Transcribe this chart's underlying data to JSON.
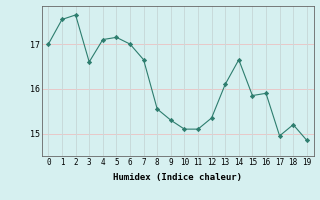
{
  "x": [
    0,
    1,
    2,
    3,
    4,
    5,
    6,
    7,
    8,
    9,
    10,
    11,
    12,
    13,
    14,
    15,
    16,
    17,
    18,
    19
  ],
  "y": [
    17.0,
    17.55,
    17.65,
    16.6,
    17.1,
    17.15,
    17.0,
    16.65,
    15.55,
    15.3,
    15.1,
    15.1,
    15.35,
    16.1,
    16.65,
    15.85,
    15.9,
    14.95,
    15.2,
    14.85
  ],
  "line_color": "#2d7d6e",
  "marker_color": "#2d7d6e",
  "bg_color": "#d6f0f0",
  "grid_color_h": "#e8c8c8",
  "grid_color_v": "#c8dada",
  "axis_color": "#666666",
  "xlabel": "Humidex (Indice chaleur)",
  "yticks": [
    15,
    16,
    17
  ],
  "ylim": [
    14.5,
    17.85
  ],
  "xlim": [
    -0.5,
    19.5
  ]
}
